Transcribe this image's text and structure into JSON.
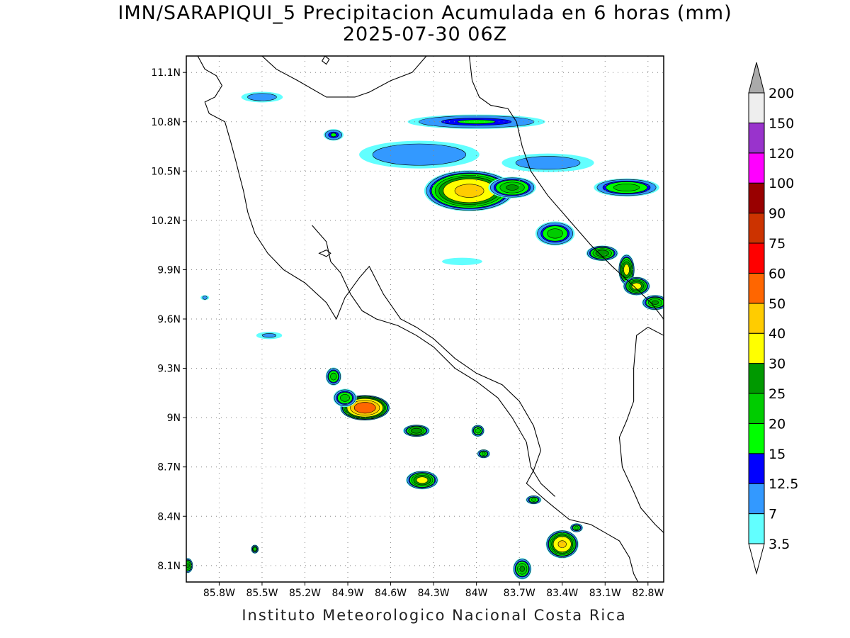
{
  "title": {
    "line1": "IMN/SARAPIQUI_5 Precipitacion Acumulada en 6 horas (mm)",
    "line2": "2025-07-30 06Z"
  },
  "map": {
    "lon_range": [
      -86.03,
      -82.69
    ],
    "lat_range": [
      8.0,
      11.2
    ],
    "lat_ticks": [
      {
        "v": 11.1,
        "label": "11.1N"
      },
      {
        "v": 10.8,
        "label": "10.8N"
      },
      {
        "v": 10.5,
        "label": "10.5N"
      },
      {
        "v": 10.2,
        "label": "10.2N"
      },
      {
        "v": 9.9,
        "label": "9.9N"
      },
      {
        "v": 9.6,
        "label": "9.6N"
      },
      {
        "v": 9.3,
        "label": "9.3N"
      },
      {
        "v": 9.0,
        "label": "9N"
      },
      {
        "v": 8.7,
        "label": "8.7N"
      },
      {
        "v": 8.4,
        "label": "8.4N"
      },
      {
        "v": 8.1,
        "label": "8.1N"
      }
    ],
    "lon_ticks": [
      {
        "v": -85.8,
        "label": "85.8W"
      },
      {
        "v": -85.5,
        "label": "85.5W"
      },
      {
        "v": -85.2,
        "label": "85.2W"
      },
      {
        "v": -84.9,
        "label": "84.9W"
      },
      {
        "v": -84.6,
        "label": "84.6W"
      },
      {
        "v": -84.3,
        "label": "84.3W"
      },
      {
        "v": -84.0,
        "label": "84W"
      },
      {
        "v": -83.7,
        "label": "83.7W"
      },
      {
        "v": -83.4,
        "label": "83.4W"
      },
      {
        "v": -83.1,
        "label": "83.1W"
      },
      {
        "v": -82.8,
        "label": "82.8W"
      }
    ],
    "grid": "dotted",
    "coastline": [
      [
        [
          -85.95,
          11.2
        ],
        [
          -85.9,
          11.12
        ],
        [
          -85.82,
          11.08
        ],
        [
          -85.78,
          11.02
        ],
        [
          -85.83,
          10.95
        ],
        [
          -85.9,
          10.92
        ],
        [
          -85.87,
          10.85
        ],
        [
          -85.76,
          10.8
        ],
        [
          -85.72,
          10.68
        ],
        [
          -85.68,
          10.55
        ],
        [
          -85.66,
          10.48
        ],
        [
          -85.63,
          10.38
        ],
        [
          -85.6,
          10.25
        ],
        [
          -85.55,
          10.12
        ],
        [
          -85.46,
          10.0
        ],
        [
          -85.35,
          9.9
        ],
        [
          -85.2,
          9.82
        ],
        [
          -85.05,
          9.7
        ],
        [
          -84.98,
          9.6
        ],
        [
          -84.92,
          9.73
        ],
        [
          -84.82,
          9.85
        ],
        [
          -84.75,
          9.92
        ],
        [
          -84.65,
          9.75
        ],
        [
          -84.53,
          9.6
        ],
        [
          -84.42,
          9.55
        ],
        [
          -84.3,
          9.48
        ],
        [
          -84.15,
          9.36
        ],
        [
          -84.0,
          9.27
        ],
        [
          -83.82,
          9.2
        ],
        [
          -83.7,
          9.1
        ],
        [
          -83.6,
          8.95
        ],
        [
          -83.55,
          8.8
        ],
        [
          -83.6,
          8.68
        ],
        [
          -83.65,
          8.6
        ],
        [
          -83.52,
          8.5
        ],
        [
          -83.45,
          8.45
        ],
        [
          -83.35,
          8.38
        ],
        [
          -83.2,
          8.35
        ],
        [
          -83.1,
          8.3
        ],
        [
          -83.0,
          8.25
        ],
        [
          -82.93,
          8.15
        ],
        [
          -82.9,
          8.05
        ],
        [
          -82.87,
          8.0
        ]
      ],
      [
        [
          -85.15,
          10.17
        ],
        [
          -85.05,
          10.07
        ],
        [
          -85.02,
          9.95
        ],
        [
          -84.95,
          9.88
        ],
        [
          -84.88,
          9.75
        ],
        [
          -84.8,
          9.65
        ],
        [
          -84.7,
          9.6
        ],
        [
          -84.55,
          9.56
        ],
        [
          -84.42,
          9.5
        ],
        [
          -84.3,
          9.43
        ],
        [
          -84.15,
          9.3
        ],
        [
          -84.0,
          9.22
        ],
        [
          -83.85,
          9.12
        ],
        [
          -83.75,
          9.0
        ],
        [
          -83.65,
          8.85
        ],
        [
          -83.62,
          8.7
        ],
        [
          -83.55,
          8.6
        ],
        [
          -83.45,
          8.52
        ]
      ],
      [
        [
          -85.5,
          11.2
        ],
        [
          -85.4,
          11.12
        ],
        [
          -85.25,
          11.05
        ],
        [
          -85.05,
          10.95
        ],
        [
          -84.85,
          10.95
        ],
        [
          -84.75,
          10.98
        ],
        [
          -84.6,
          11.05
        ],
        [
          -84.45,
          11.1
        ],
        [
          -84.35,
          11.2
        ]
      ],
      [
        [
          -84.05,
          11.2
        ],
        [
          -84.03,
          11.05
        ],
        [
          -83.98,
          10.95
        ],
        [
          -83.9,
          10.9
        ],
        [
          -83.78,
          10.88
        ],
        [
          -83.72,
          10.8
        ],
        [
          -83.68,
          10.65
        ],
        [
          -83.62,
          10.5
        ],
        [
          -83.5,
          10.35
        ],
        [
          -83.35,
          10.2
        ],
        [
          -83.2,
          10.05
        ],
        [
          -83.05,
          9.92
        ],
        [
          -82.9,
          9.8
        ],
        [
          -82.78,
          9.7
        ],
        [
          -82.69,
          9.6
        ]
      ],
      [
        [
          -82.69,
          9.5
        ],
        [
          -82.8,
          9.55
        ],
        [
          -82.88,
          9.5
        ],
        [
          -82.9,
          9.3
        ],
        [
          -82.9,
          9.1
        ],
        [
          -82.95,
          8.98
        ],
        [
          -83.0,
          8.88
        ],
        [
          -82.98,
          8.7
        ],
        [
          -82.9,
          8.55
        ],
        [
          -82.85,
          8.45
        ],
        [
          -82.75,
          8.35
        ],
        [
          -82.69,
          8.3
        ]
      ]
    ],
    "islands": [
      [
        [
          -85.1,
          10.0
        ],
        [
          -85.05,
          10.02
        ],
        [
          -85.02,
          10.0
        ],
        [
          -85.05,
          9.98
        ],
        [
          -85.1,
          10.0
        ]
      ],
      [
        [
          -85.06,
          11.2
        ],
        [
          -85.03,
          11.18
        ],
        [
          -85.05,
          11.15
        ],
        [
          -85.08,
          11.17
        ],
        [
          -85.06,
          11.2
        ]
      ]
    ]
  },
  "colorbar": {
    "levels": [
      "3.5",
      "7",
      "12.5",
      "15",
      "20",
      "25",
      "30",
      "40",
      "50",
      "60",
      "75",
      "90",
      "100",
      "120",
      "150",
      "200"
    ],
    "colors": [
      "#62ffff",
      "#3399ff",
      "#0000ff",
      "#00ff00",
      "#00cc00",
      "#009900",
      "#ffff00",
      "#ffcc00",
      "#ff6600",
      "#ff0000",
      "#cc3300",
      "#990000",
      "#ff00ff",
      "#9933cc",
      "#eeeeee",
      "#aaaaaa"
    ]
  },
  "precip_cells": [
    {
      "lon": -84.05,
      "lat": 10.38,
      "rx": 0.33,
      "ry": 0.13,
      "peak": 42
    },
    {
      "lon": -83.75,
      "lat": 10.4,
      "rx": 0.18,
      "ry": 0.07,
      "peak": 25
    },
    {
      "lon": -84.0,
      "lat": 10.8,
      "rx": 0.55,
      "ry": 0.05,
      "peak": 15
    },
    {
      "lon": -84.4,
      "lat": 10.6,
      "rx": 0.5,
      "ry": 0.1,
      "peak": 12
    },
    {
      "lon": -83.5,
      "lat": 10.55,
      "rx": 0.4,
      "ry": 0.07,
      "peak": 10
    },
    {
      "lon": -82.95,
      "lat": 10.4,
      "rx": 0.25,
      "ry": 0.06,
      "peak": 22
    },
    {
      "lon": -83.45,
      "lat": 10.12,
      "rx": 0.15,
      "ry": 0.08,
      "peak": 22
    },
    {
      "lon": -83.12,
      "lat": 10.0,
      "rx": 0.12,
      "ry": 0.05,
      "peak": 28
    },
    {
      "lon": -82.95,
      "lat": 9.9,
      "rx": 0.06,
      "ry": 0.1,
      "peak": 32
    },
    {
      "lon": -82.88,
      "lat": 9.8,
      "rx": 0.1,
      "ry": 0.06,
      "peak": 32
    },
    {
      "lon": -82.75,
      "lat": 9.7,
      "rx": 0.1,
      "ry": 0.05,
      "peak": 25
    },
    {
      "lon": -85.5,
      "lat": 10.95,
      "rx": 0.18,
      "ry": 0.04,
      "peak": 10
    },
    {
      "lon": -85.0,
      "lat": 10.72,
      "rx": 0.08,
      "ry": 0.04,
      "peak": 15
    },
    {
      "lon": -84.1,
      "lat": 9.95,
      "rx": 0.25,
      "ry": 0.04,
      "peak": 5
    },
    {
      "lon": -84.78,
      "lat": 9.06,
      "rx": 0.18,
      "ry": 0.08,
      "peak": 58
    },
    {
      "lon": -85.0,
      "lat": 9.25,
      "rx": 0.06,
      "ry": 0.06,
      "peak": 22
    },
    {
      "lon": -84.92,
      "lat": 9.12,
      "rx": 0.09,
      "ry": 0.06,
      "peak": 22
    },
    {
      "lon": -84.42,
      "lat": 8.92,
      "rx": 0.1,
      "ry": 0.04,
      "peak": 28
    },
    {
      "lon": -84.38,
      "lat": 8.62,
      "rx": 0.12,
      "ry": 0.06,
      "peak": 32
    },
    {
      "lon": -83.99,
      "lat": 8.92,
      "rx": 0.05,
      "ry": 0.04,
      "peak": 22
    },
    {
      "lon": -83.95,
      "lat": 8.78,
      "rx": 0.05,
      "ry": 0.03,
      "peak": 20
    },
    {
      "lon": -83.4,
      "lat": 8.23,
      "rx": 0.12,
      "ry": 0.09,
      "peak": 40
    },
    {
      "lon": -83.68,
      "lat": 8.08,
      "rx": 0.07,
      "ry": 0.07,
      "peak": 25
    },
    {
      "lon": -83.3,
      "lat": 8.33,
      "rx": 0.05,
      "ry": 0.03,
      "peak": 20
    },
    {
      "lon": -83.6,
      "lat": 8.5,
      "rx": 0.06,
      "ry": 0.03,
      "peak": 20
    },
    {
      "lon": -85.45,
      "lat": 9.5,
      "rx": 0.12,
      "ry": 0.03,
      "peak": 8
    },
    {
      "lon": -85.55,
      "lat": 8.2,
      "rx": 0.03,
      "ry": 0.03,
      "peak": 20
    },
    {
      "lon": -86.02,
      "lat": 8.1,
      "rx": 0.04,
      "ry": 0.05,
      "peak": 25
    },
    {
      "lon": -85.9,
      "lat": 9.73,
      "rx": 0.04,
      "ry": 0.02,
      "peak": 8
    }
  ],
  "credit": "Instituto Meteorologico Nacional Costa Rica"
}
